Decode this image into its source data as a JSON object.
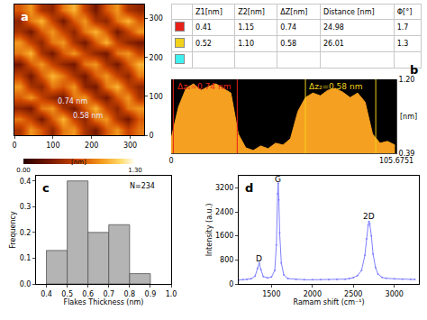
{
  "chart_data": [
    {
      "type": "heatmap",
      "label": "a",
      "x": [
        14,
        42,
        70,
        98,
        126,
        154,
        182,
        210,
        238,
        266,
        294,
        322
      ],
      "y": [
        14,
        42,
        70,
        98,
        126,
        154,
        182,
        210,
        238,
        266,
        294,
        322
      ],
      "z": [
        [
          0.5,
          0.9,
          0.7,
          0.4,
          0.8,
          0.9,
          0.5,
          0.3,
          0.7,
          0.9,
          0.6,
          0.8
        ],
        [
          0.8,
          0.6,
          0.3,
          0.7,
          1.0,
          0.6,
          0.4,
          0.8,
          0.9,
          0.5,
          0.3,
          0.7
        ],
        [
          0.4,
          0.3,
          0.8,
          0.9,
          0.5,
          0.3,
          0.7,
          1.0,
          0.6,
          0.4,
          0.8,
          0.9
        ],
        [
          0.7,
          0.9,
          0.6,
          0.4,
          0.3,
          0.8,
          0.9,
          0.5,
          0.3,
          0.7,
          0.9,
          0.5
        ],
        [
          0.9,
          0.5,
          0.4,
          0.8,
          0.7,
          0.9,
          0.4,
          0.3,
          0.8,
          1.0,
          0.6,
          0.4
        ],
        [
          0.6,
          0.3,
          0.7,
          1.0,
          0.8,
          0.5,
          0.3,
          0.7,
          0.9,
          0.6,
          0.4,
          0.8
        ],
        [
          0.3,
          0.7,
          0.9,
          0.6,
          0.4,
          0.3,
          0.8,
          0.9,
          0.5,
          0.3,
          0.7,
          1.0
        ],
        [
          0.8,
          1.0,
          0.5,
          0.3,
          0.7,
          0.9,
          0.6,
          0.4,
          0.3,
          0.8,
          0.9,
          0.6
        ],
        [
          0.9,
          0.6,
          0.4,
          0.8,
          0.9,
          0.5,
          0.3,
          0.7,
          1.0,
          0.6,
          0.4,
          0.3
        ],
        [
          0.5,
          0.3,
          0.7,
          0.9,
          0.6,
          0.4,
          0.8,
          1.0,
          0.7,
          0.3,
          0.6,
          0.9
        ],
        [
          0.4,
          0.8,
          1.0,
          0.6,
          0.3,
          0.7,
          0.9,
          0.5,
          0.4,
          0.8,
          1.0,
          0.7
        ],
        [
          0.7,
          0.9,
          0.5,
          0.4,
          0.8,
          1.0,
          0.6,
          0.3,
          0.7,
          0.9,
          0.5,
          0.4
        ]
      ],
      "xlim": [
        0,
        336
      ],
      "ylim": [
        0,
        336
      ],
      "xticks": [
        0,
        100,
        200,
        300
      ],
      "yticks": [
        0,
        100,
        200,
        300
      ],
      "colorbar": {
        "title": "[nm]",
        "range": [
          0,
          1.3
        ],
        "ticks": [
          {
            "value": 0,
            "label": "0.00"
          },
          {
            "value": 1.3,
            "label": "1.30"
          }
        ]
      },
      "annotations": [
        {
          "text": "0.74 nm",
          "x": 150,
          "y": 88
        },
        {
          "text": "0.58 nm",
          "x": 190,
          "y": 50
        }
      ]
    },
    {
      "type": "table",
      "label": "b",
      "columns": [
        "Z1[nm]",
        "Z2[nm]",
        "ΔZ[nm]",
        "Distance [nm]",
        "Φ[°]"
      ],
      "rows": [
        [
          "0.41",
          "1.15",
          "0.74",
          "24.98",
          "1.7"
        ],
        [
          "0.52",
          "1.10",
          "0.58",
          "26.01",
          "1.3"
        ]
      ],
      "colors": [
        "#e8201a",
        "#f2d21b",
        "#3ff0f0"
      ]
    },
    {
      "type": "area",
      "x": [
        0,
        3.5,
        7,
        10.5,
        14,
        17.5,
        21,
        24.5,
        28,
        31.5,
        35,
        38.5,
        42,
        45.5,
        49,
        52.5,
        56,
        59.5,
        63,
        66.5,
        70,
        73.5,
        77,
        80.5,
        84,
        87.5,
        91,
        94.5,
        98,
        101.5,
        105
      ],
      "values": [
        0.55,
        0.9,
        1.1,
        1.15,
        1.08,
        1.12,
        1.15,
        1.1,
        1.05,
        0.6,
        0.45,
        0.42,
        0.47,
        0.44,
        0.5,
        0.48,
        0.55,
        0.85,
        1.0,
        1.05,
        1.02,
        1.08,
        1.1,
        1.06,
        1.0,
        1.05,
        0.95,
        0.6,
        0.5,
        0.52,
        0.48
      ],
      "color": "#f5a020",
      "xlim": [
        0,
        105.6751
      ],
      "xticks": [
        0,
        105.6751
      ],
      "ylim": [
        0.39,
        1.2
      ],
      "yticks": [
        0.39,
        {
          "value": 1.2,
          "label": "1.20"
        }
      ],
      "y_label": "[nm]",
      "cursors": [
        {
          "x": 1,
          "color": "#e8201a"
        },
        {
          "x": 31,
          "color": "#e8201a"
        },
        {
          "x": 63,
          "color": "#f2d21b"
        },
        {
          "x": 96,
          "color": "#f2d21b"
        }
      ],
      "annotations": [
        {
          "text": "Δz₁=0.74 nm",
          "x": 2,
          "y": 1.12,
          "color": "#e8201a"
        },
        {
          "text": "Δz₂=0.58 nm",
          "x": 64,
          "y": 1.12,
          "color": "#f2d21b"
        }
      ]
    },
    {
      "type": "histogram",
      "label": "c",
      "bins": [
        0.4,
        0.5,
        0.6,
        0.7,
        0.8,
        0.9
      ],
      "counts": [
        0.13,
        0.4,
        0.2,
        0.23,
        0.04
      ],
      "color": "#b4b4b4",
      "xlim": [
        0.35,
        1.0
      ],
      "xticks": [
        0.4,
        0.5,
        0.6,
        0.7,
        0.8,
        0.9,
        {
          "value": 1,
          "label": "1.0"
        }
      ],
      "ylim": [
        0,
        0.42
      ],
      "yticks": [
        {
          "value": 0,
          "label": "0.0"
        },
        0.1,
        0.2,
        0.3,
        0.4
      ],
      "x_label": "Flakes Thickness (nm)",
      "y_label": "Frequency",
      "annotations": [
        {
          "text": "N=234",
          "x": 0.86,
          "y": 0.38
        }
      ]
    },
    {
      "type": "line",
      "label": "d",
      "x": [
        1100,
        1150,
        1200,
        1250,
        1300,
        1330,
        1350,
        1370,
        1400,
        1450,
        1500,
        1540,
        1560,
        1575,
        1582,
        1590,
        1600,
        1620,
        1650,
        1700,
        1800,
        1900,
        2000,
        2100,
        2200,
        2300,
        2400,
        2450,
        2500,
        2550,
        2600,
        2640,
        2660,
        2680,
        2690,
        2700,
        2720,
        2740,
        2770,
        2800,
        2850,
        2900,
        3000,
        3100,
        3200,
        3250
      ],
      "values": [
        130,
        140,
        150,
        170,
        260,
        520,
        700,
        480,
        250,
        200,
        230,
        450,
        1300,
        3000,
        3350,
        2800,
        1700,
        700,
        300,
        180,
        150,
        140,
        140,
        140,
        140,
        150,
        160,
        180,
        210,
        280,
        450,
        950,
        1500,
        1950,
        2080,
        2000,
        1600,
        1000,
        550,
        330,
        220,
        190,
        170,
        160,
        150,
        150
      ],
      "color": "#8080ff",
      "xlim": [
        1100,
        3300
      ],
      "xticks": [
        1500,
        2000,
        2500,
        3000
      ],
      "ylim": [
        0,
        3600
      ],
      "yticks": [
        0,
        800,
        1600,
        2400,
        3200
      ],
      "x_label": "Ramam shift (cm⁻¹)",
      "y_label": "Intensity (a.u.)",
      "annotations": [
        {
          "text": "D",
          "x": 1350,
          "y": 850
        },
        {
          "text": "G",
          "x": 1582,
          "y": 3470
        },
        {
          "text": "2D",
          "x": 2690,
          "y": 2250
        }
      ]
    }
  ]
}
